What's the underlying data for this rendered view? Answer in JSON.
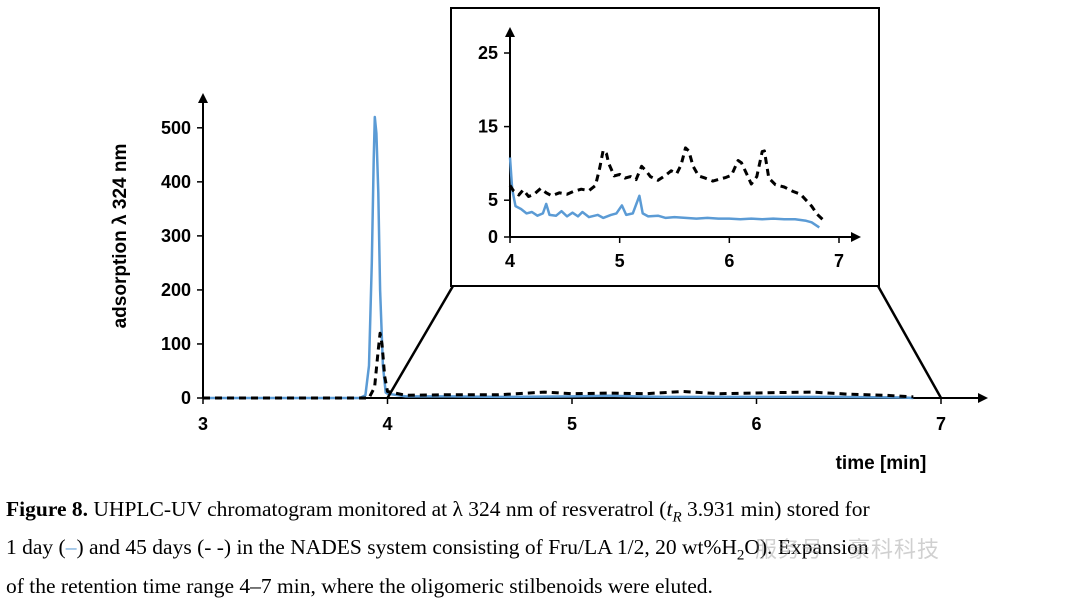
{
  "chart_data": [
    {
      "type": "line",
      "panel": "main",
      "xlabel": "time [min]",
      "ylabel": "adsorption λ 324 nm",
      "xlim": [
        3,
        7
      ],
      "ylim": [
        0,
        520
      ],
      "xticks": [
        3,
        4,
        5,
        6,
        7
      ],
      "yticks": [
        0,
        100,
        200,
        300,
        400,
        500
      ],
      "grid": false,
      "series": [
        {
          "style": "solid",
          "color": "#5b9bd5",
          "points": [
            [
              3.0,
              0
            ],
            [
              3.85,
              0
            ],
            [
              3.88,
              5
            ],
            [
              3.9,
              60
            ],
            [
              3.915,
              250
            ],
            [
              3.925,
              440
            ],
            [
              3.931,
              520
            ],
            [
              3.94,
              490
            ],
            [
              3.95,
              380
            ],
            [
              3.96,
              200
            ],
            [
              3.975,
              60
            ],
            [
              3.99,
              10
            ],
            [
              4.0,
              8
            ],
            [
              4.1,
              3
            ],
            [
              4.35,
              3
            ],
            [
              4.6,
              2
            ],
            [
              5.0,
              3
            ],
            [
              5.2,
              4
            ],
            [
              5.5,
              2
            ],
            [
              6.0,
              2
            ],
            [
              6.4,
              2
            ],
            [
              6.8,
              1
            ],
            [
              6.85,
              0
            ]
          ]
        },
        {
          "style": "dashed",
          "color": "#000000",
          "points": [
            [
              3.0,
              0
            ],
            [
              3.9,
              0
            ],
            [
              3.93,
              20
            ],
            [
              3.95,
              90
            ],
            [
              3.96,
              120
            ],
            [
              3.97,
              100
            ],
            [
              3.985,
              40
            ],
            [
              4.0,
              12
            ],
            [
              4.1,
              5
            ],
            [
              4.3,
              6
            ],
            [
              4.6,
              6
            ],
            [
              4.85,
              11
            ],
            [
              5.0,
              8
            ],
            [
              5.2,
              9
            ],
            [
              5.4,
              8
            ],
            [
              5.6,
              12
            ],
            [
              5.8,
              8
            ],
            [
              6.1,
              10
            ],
            [
              6.3,
              11
            ],
            [
              6.5,
              7
            ],
            [
              6.7,
              5
            ],
            [
              6.85,
              2
            ]
          ]
        }
      ]
    },
    {
      "type": "line",
      "panel": "inset",
      "xlim": [
        4,
        7
      ],
      "ylim": [
        0,
        25
      ],
      "xticks": [
        4,
        5,
        6,
        7
      ],
      "yticks": [
        0,
        5,
        15,
        25
      ],
      "grid": false,
      "series": [
        {
          "style": "solid",
          "color": "#5b9bd5",
          "points": [
            [
              4.0,
              10.8
            ],
            [
              4.02,
              6.5
            ],
            [
              4.05,
              4.2
            ],
            [
              4.1,
              3.8
            ],
            [
              4.15,
              3.2
            ],
            [
              4.2,
              3.4
            ],
            [
              4.25,
              2.9
            ],
            [
              4.3,
              3.2
            ],
            [
              4.33,
              4.5
            ],
            [
              4.36,
              3.0
            ],
            [
              4.42,
              2.9
            ],
            [
              4.47,
              3.5
            ],
            [
              4.52,
              2.8
            ],
            [
              4.57,
              3.3
            ],
            [
              4.62,
              2.8
            ],
            [
              4.66,
              3.4
            ],
            [
              4.72,
              2.7
            ],
            [
              4.8,
              3.0
            ],
            [
              4.85,
              2.6
            ],
            [
              4.92,
              3.0
            ],
            [
              4.97,
              3.2
            ],
            [
              5.02,
              4.3
            ],
            [
              5.06,
              3.0
            ],
            [
              5.12,
              3.2
            ],
            [
              5.18,
              5.6
            ],
            [
              5.21,
              3.2
            ],
            [
              5.26,
              2.8
            ],
            [
              5.35,
              2.9
            ],
            [
              5.42,
              2.6
            ],
            [
              5.5,
              2.7
            ],
            [
              5.6,
              2.6
            ],
            [
              5.7,
              2.5
            ],
            [
              5.8,
              2.6
            ],
            [
              5.9,
              2.5
            ],
            [
              6.0,
              2.5
            ],
            [
              6.1,
              2.4
            ],
            [
              6.2,
              2.5
            ],
            [
              6.3,
              2.4
            ],
            [
              6.4,
              2.5
            ],
            [
              6.5,
              2.4
            ],
            [
              6.6,
              2.4
            ],
            [
              6.7,
              2.2
            ],
            [
              6.75,
              2.0
            ],
            [
              6.82,
              1.3
            ]
          ]
        },
        {
          "style": "dashed",
          "color": "#000000",
          "points": [
            [
              4.0,
              7.0
            ],
            [
              4.03,
              6.3
            ],
            [
              4.08,
              5.7
            ],
            [
              4.12,
              6.4
            ],
            [
              4.17,
              5.5
            ],
            [
              4.22,
              5.8
            ],
            [
              4.28,
              6.6
            ],
            [
              4.33,
              6.0
            ],
            [
              4.38,
              5.6
            ],
            [
              4.45,
              6.0
            ],
            [
              4.52,
              5.8
            ],
            [
              4.58,
              6.2
            ],
            [
              4.65,
              6.5
            ],
            [
              4.72,
              6.3
            ],
            [
              4.78,
              7.0
            ],
            [
              4.82,
              9.5
            ],
            [
              4.85,
              11.8
            ],
            [
              4.88,
              11.3
            ],
            [
              4.9,
              10.0
            ],
            [
              4.95,
              8.3
            ],
            [
              5.0,
              8.5
            ],
            [
              5.05,
              8.0
            ],
            [
              5.1,
              8.2
            ],
            [
              5.15,
              7.8
            ],
            [
              5.2,
              9.6
            ],
            [
              5.24,
              9.0
            ],
            [
              5.28,
              8.2
            ],
            [
              5.35,
              7.7
            ],
            [
              5.42,
              8.4
            ],
            [
              5.47,
              9.0
            ],
            [
              5.52,
              8.6
            ],
            [
              5.56,
              9.8
            ],
            [
              5.6,
              12.1
            ],
            [
              5.63,
              11.7
            ],
            [
              5.67,
              9.6
            ],
            [
              5.72,
              8.3
            ],
            [
              5.78,
              8.0
            ],
            [
              5.85,
              7.6
            ],
            [
              5.92,
              7.9
            ],
            [
              5.97,
              8.1
            ],
            [
              6.02,
              8.4
            ],
            [
              6.08,
              10.4
            ],
            [
              6.11,
              10.1
            ],
            [
              6.16,
              8.5
            ],
            [
              6.2,
              7.2
            ],
            [
              6.25,
              8.2
            ],
            [
              6.3,
              11.6
            ],
            [
              6.32,
              11.7
            ],
            [
              6.36,
              8.0
            ],
            [
              6.42,
              7.1
            ],
            [
              6.5,
              6.8
            ],
            [
              6.58,
              6.2
            ],
            [
              6.65,
              5.8
            ],
            [
              6.7,
              5.0
            ],
            [
              6.75,
              4.2
            ],
            [
              6.8,
              3.1
            ],
            [
              6.85,
              2.4
            ]
          ]
        }
      ]
    }
  ],
  "caption": {
    "label": "Figure 8.",
    "line1": "UHPLC-UV chromatogram monitored at λ 324 nm of resveratrol (",
    "t_symbol": "t",
    "t_sub": "R",
    "line1b": "3.931 min) stored for",
    "line2a": "1 day (",
    "solid_marker": "–",
    "line2b": ") and 45 days (- -) in the NADES system consisting of Fru/LA 1/2, 20 wt%H",
    "h2o_sub": "2",
    "line2c": "O). Expansion",
    "line3": "of the retention time range 4–7 min, where the oligomeric stilbenoids were eluted."
  },
  "watermark": "服务号 · 豪科科技"
}
